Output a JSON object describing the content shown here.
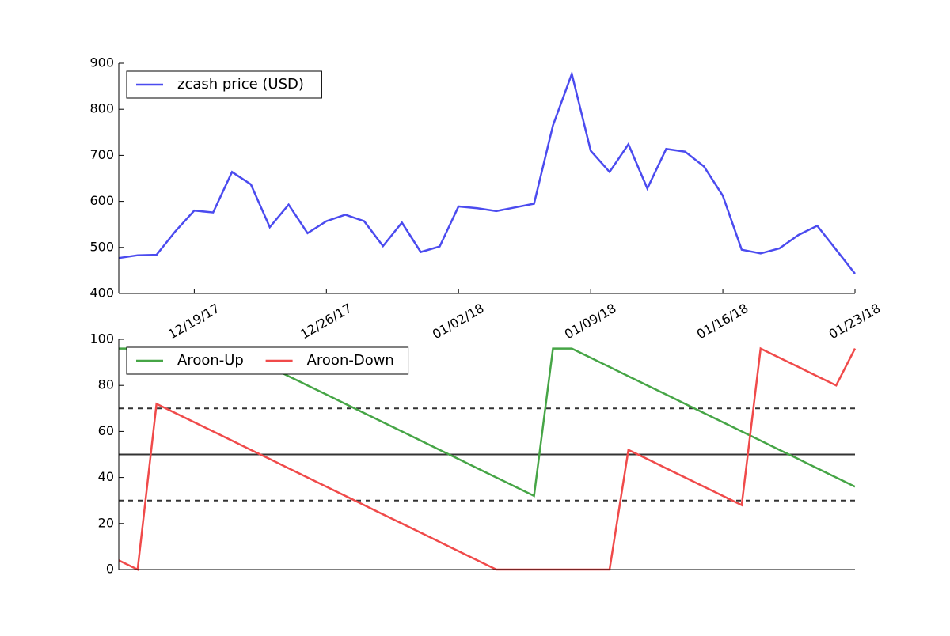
{
  "chart_data": [
    {
      "type": "line",
      "x": [
        "2017-12-15",
        "2017-12-16",
        "2017-12-17",
        "2017-12-18",
        "2017-12-19",
        "2017-12-20",
        "2017-12-21",
        "2017-12-22",
        "2017-12-23",
        "2017-12-24",
        "2017-12-25",
        "2017-12-26",
        "2017-12-27",
        "2017-12-28",
        "2017-12-29",
        "2017-12-30",
        "2017-12-31",
        "2018-01-01",
        "2018-01-02",
        "2018-01-03",
        "2018-01-04",
        "2018-01-05",
        "2018-01-06",
        "2018-01-07",
        "2018-01-08",
        "2018-01-09",
        "2018-01-10",
        "2018-01-11",
        "2018-01-12",
        "2018-01-13",
        "2018-01-14",
        "2018-01-15",
        "2018-01-16",
        "2018-01-17",
        "2018-01-18",
        "2018-01-19",
        "2018-01-20",
        "2018-01-21",
        "2018-01-22",
        "2018-01-23"
      ],
      "series": [
        {
          "name": "zcash price (USD)",
          "color": "#4b4bef",
          "values": [
            477,
            483,
            484,
            535,
            580,
            576,
            664,
            637,
            544,
            593,
            531,
            557,
            571,
            557,
            503,
            554,
            490,
            502,
            589,
            585,
            579,
            587,
            595,
            765,
            877,
            710,
            664,
            724,
            628,
            714,
            708,
            676,
            612,
            495,
            487,
            498,
            527,
            547,
            495,
            443
          ]
        }
      ],
      "xlim": [
        "2017-12-15",
        "2018-01-23"
      ],
      "xticks": [
        {
          "value": "2017-12-19",
          "label": "12/19/17"
        },
        {
          "value": "2017-12-26",
          "label": "12/26/17"
        },
        {
          "value": "2018-01-02",
          "label": "01/02/18"
        },
        {
          "value": "2018-01-09",
          "label": "01/09/18"
        },
        {
          "value": "2018-01-16",
          "label": "01/16/18"
        },
        {
          "value": "2018-01-23",
          "label": "01/23/18"
        }
      ],
      "ylim": [
        400,
        900
      ],
      "yticks": [
        400,
        500,
        600,
        700,
        800,
        900
      ],
      "legend": "upper left",
      "legend_ncol": 1
    },
    {
      "type": "line",
      "x": [
        "2017-12-15",
        "2017-12-16",
        "2017-12-17",
        "2017-12-18",
        "2017-12-19",
        "2017-12-20",
        "2017-12-21",
        "2017-12-22",
        "2017-12-23",
        "2017-12-24",
        "2017-12-25",
        "2017-12-26",
        "2017-12-27",
        "2017-12-28",
        "2017-12-29",
        "2017-12-30",
        "2017-12-31",
        "2018-01-01",
        "2018-01-02",
        "2018-01-03",
        "2018-01-04",
        "2018-01-05",
        "2018-01-06",
        "2018-01-07",
        "2018-01-08",
        "2018-01-09",
        "2018-01-10",
        "2018-01-11",
        "2018-01-12",
        "2018-01-13",
        "2018-01-14",
        "2018-01-15",
        "2018-01-16",
        "2018-01-17",
        "2018-01-18",
        "2018-01-19",
        "2018-01-20",
        "2018-01-21",
        "2018-01-22",
        "2018-01-23"
      ],
      "series": [
        {
          "name": "Aroon-Up",
          "color": "#46a546",
          "values": [
            96,
            96,
            96,
            96,
            96,
            96,
            96,
            92,
            88,
            84,
            80,
            76,
            72,
            68,
            64,
            60,
            56,
            52,
            48,
            44,
            40,
            36,
            32,
            96,
            96,
            92,
            88,
            84,
            80,
            76,
            72,
            68,
            64,
            60,
            56,
            52,
            48,
            44,
            40,
            36
          ]
        },
        {
          "name": "Aroon-Down",
          "color": "#f04a4a",
          "values": [
            4,
            0,
            72,
            68,
            64,
            60,
            56,
            52,
            48,
            44,
            40,
            36,
            32,
            28,
            24,
            20,
            16,
            12,
            8,
            4,
            0,
            0,
            0,
            0,
            0,
            0,
            0,
            52,
            48,
            44,
            40,
            36,
            32,
            28,
            96,
            92,
            88,
            84,
            80,
            96
          ]
        }
      ],
      "xlim": [
        "2017-12-15",
        "2018-01-23"
      ],
      "ylim": [
        0,
        100
      ],
      "yticks": [
        0,
        20,
        40,
        60,
        80,
        100
      ],
      "hlines": [
        {
          "value": 70,
          "style": "dashed"
        },
        {
          "value": 50,
          "style": "solid"
        },
        {
          "value": 30,
          "style": "dashed"
        }
      ],
      "hline_color": "#333333",
      "legend": "upper left",
      "legend_ncol": 2
    }
  ]
}
